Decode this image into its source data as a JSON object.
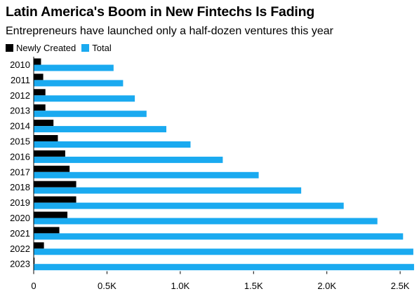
{
  "title": "Latin America's Boom in New Fintechs Is Fading",
  "subtitle": "Entrepreneurs have launched only a half-dozen ventures this year",
  "colors": {
    "newly_created": "#000000",
    "total": "#1aaaf0"
  },
  "chart_data": {
    "type": "bar",
    "orientation": "horizontal",
    "title": "Latin America's Boom in New Fintechs Is Fading",
    "subtitle": "Entrepreneurs have launched only a half-dozen ventures this year",
    "categories": [
      "2010",
      "2011",
      "2012",
      "2013",
      "2014",
      "2015",
      "2016",
      "2017",
      "2018",
      "2019",
      "2020",
      "2021",
      "2022",
      "2023"
    ],
    "series": [
      {
        "name": "Newly Created",
        "color": "#000000",
        "values": [
          50,
          65,
          80,
          80,
          135,
          165,
          215,
          245,
          290,
          290,
          230,
          175,
          70,
          6
        ]
      },
      {
        "name": "Total",
        "color": "#1aaaf0",
        "values": [
          545,
          610,
          690,
          770,
          905,
          1070,
          1290,
          1535,
          1825,
          2115,
          2345,
          2520,
          2590,
          2595
        ]
      }
    ],
    "xlim": [
      0,
      2600
    ],
    "xticks": [
      0,
      500,
      1000,
      1500,
      2000,
      2500
    ],
    "xtick_labels": [
      "0",
      "0.5K",
      "1.0K",
      "1.5K",
      "2.0K",
      "2.5K"
    ],
    "xlabel": "",
    "ylabel": "",
    "legend_position": "top-left",
    "grid": false
  }
}
